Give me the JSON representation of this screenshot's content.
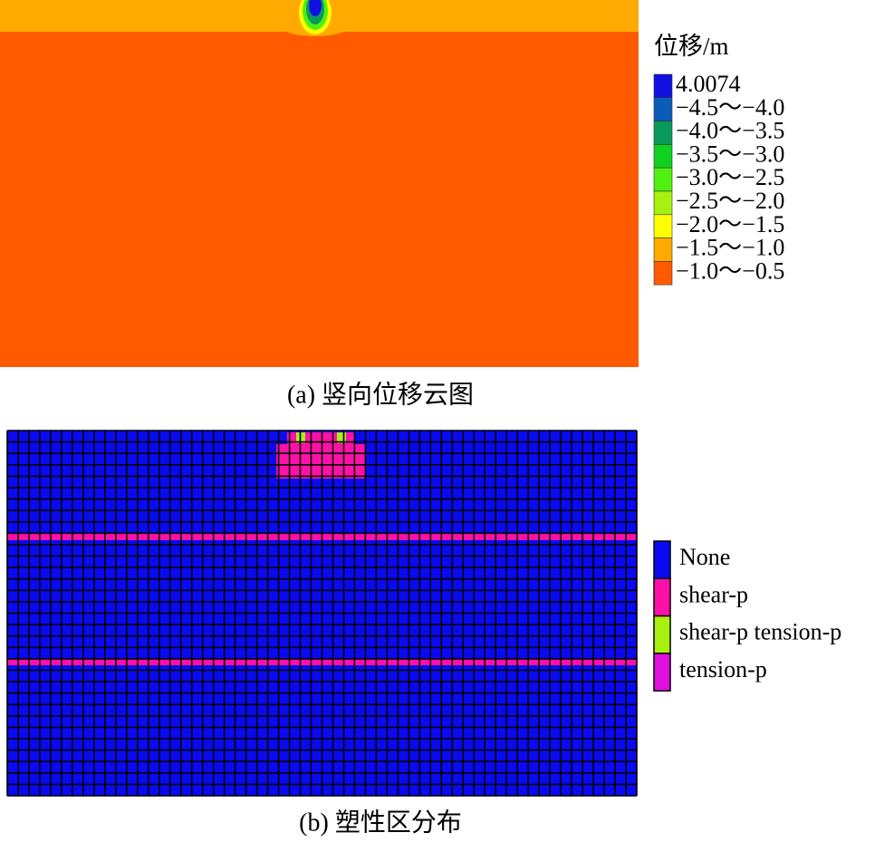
{
  "panel_a": {
    "legend_title": "位移/m",
    "legend": [
      {
        "label": "4.0074",
        "color": "#1010e0"
      },
      {
        "label": "−4.5～−4.0",
        "color": "#0a5cb8"
      },
      {
        "label": "−4.0～−3.5",
        "color": "#0a9a5c"
      },
      {
        "label": "−3.5～−3.0",
        "color": "#10d020"
      },
      {
        "label": "−3.0～−2.5",
        "color": "#50f010"
      },
      {
        "label": "−2.5～−2.0",
        "color": "#a8f010"
      },
      {
        "label": "−2.0～−1.5",
        "color": "#ffff00"
      },
      {
        "label": "−1.5～−1.0",
        "color": "#ffaa00"
      },
      {
        "label": "−1.0～−0.5",
        "color": "#ff5a00"
      }
    ],
    "caption": "(a) 竖向位移云图"
  },
  "panel_b": {
    "legend": [
      {
        "label": "None",
        "color": "#0a0af0"
      },
      {
        "label": "shear-p",
        "color": "#ff10a8"
      },
      {
        "label": "shear-p tension-p",
        "color": "#a8f010"
      },
      {
        "label": "tension-p",
        "color": "#e010e0"
      }
    ],
    "caption": "(b) 塑性区分布"
  }
}
